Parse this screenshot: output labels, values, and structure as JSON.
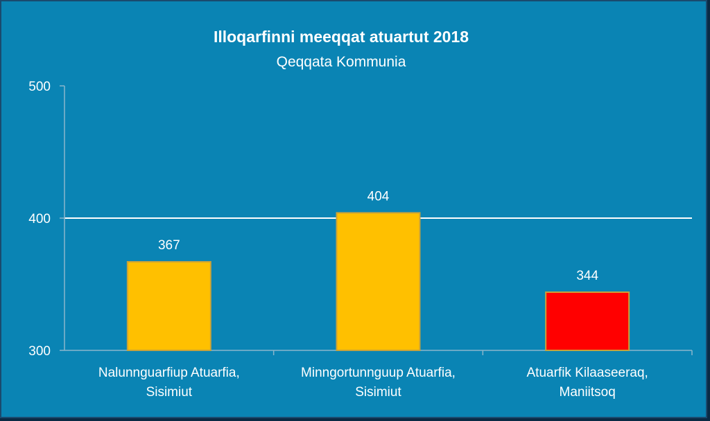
{
  "chart_data": {
    "type": "bar",
    "title": "Illoqarfinni meeqqat atuartut 2018",
    "subtitle": "Qeqqata Kommunia",
    "categories": [
      [
        "Nalunnguarfiup Atuarfia,",
        "Sisimiut"
      ],
      [
        "Minngortunnguup Atuarfia,",
        "Sisimiut"
      ],
      [
        "Atuarfik Kilaaseeraq,",
        "Maniitsoq"
      ]
    ],
    "values": [
      367,
      404,
      344
    ],
    "bar_colors": [
      "#ffc000",
      "#ffc000",
      "#ff0000"
    ],
    "ylim": [
      300,
      500
    ],
    "yticks": [
      300,
      400,
      500
    ],
    "ytick_labels": [
      "300",
      "400",
      "500"
    ],
    "gridlines": [
      400
    ],
    "grid": true,
    "legend": "none",
    "colors": {
      "background": "#0a84b4",
      "text": "#ffffff",
      "gridline": "#ffffff",
      "axis": "#8ab6cc",
      "bar_border": "#c8a23a"
    }
  }
}
